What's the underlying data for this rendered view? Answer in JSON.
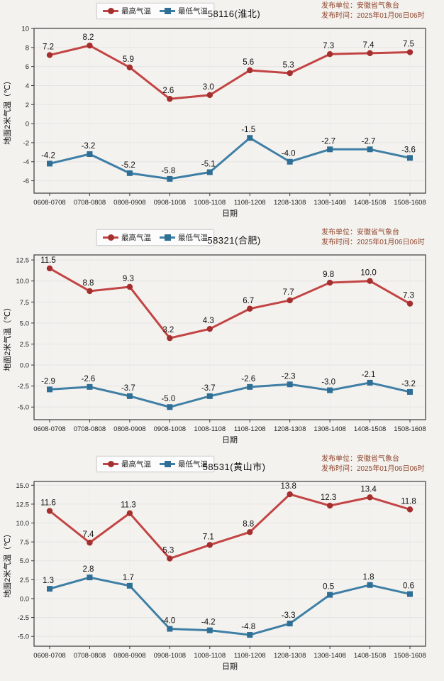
{
  "publisher": {
    "unit_line": "发布单位：安徽省气象台",
    "time_line": "发布时间：2025年01月06日06时"
  },
  "legend": {
    "max_label": "最高气温",
    "min_label": "最低气温"
  },
  "axes": {
    "xlabel": "日期",
    "ylabel": "地面2米气温（℃）"
  },
  "colors": {
    "max_line": "#c24444",
    "max_marker": "#a52f2f",
    "min_line": "#3f7fa6",
    "min_marker": "#2f6f96",
    "publisher_text": "#8f4730",
    "grid_h": "#e4e4e4",
    "grid_v": "#ececec",
    "frame": "#3a3a3a"
  },
  "chart_data": [
    {
      "type": "line",
      "station": "58116(淮北)",
      "title": "58116(淮北)",
      "xlabel": "日期",
      "ylabel": "地面2米气温（℃）",
      "categories": [
        "0608-0708",
        "0708-0808",
        "0808-0908",
        "0908-1008",
        "1008-1108",
        "1108-1208",
        "1208-1308",
        "1308-1408",
        "1408-1508",
        "1508-1608"
      ],
      "series": [
        {
          "name": "最高气温",
          "values": [
            7.2,
            8.2,
            5.9,
            2.6,
            3.0,
            5.6,
            5.3,
            7.3,
            7.4,
            7.5
          ]
        },
        {
          "name": "最低气温",
          "values": [
            -4.2,
            -3.2,
            -5.2,
            -5.8,
            -5.1,
            -1.5,
            -4.0,
            -2.7,
            -2.7,
            -3.6
          ]
        }
      ],
      "yticks": [
        10,
        8,
        6,
        4,
        2,
        0,
        -2,
        -4,
        -6
      ],
      "ytick_decimals": 0,
      "ylim": [
        -7.3,
        10.0
      ],
      "grid": true,
      "legend_position": "top-left"
    },
    {
      "type": "line",
      "station": "58321(合肥)",
      "title": "58321(合肥)",
      "xlabel": "日期",
      "ylabel": "地面2米气温（℃）",
      "categories": [
        "0608-0708",
        "0708-0808",
        "0808-0908",
        "0908-1008",
        "1008-1108",
        "1108-1208",
        "1208-1308",
        "1308-1408",
        "1408-1508",
        "1508-1608"
      ],
      "series": [
        {
          "name": "最高气温",
          "values": [
            11.5,
            8.8,
            9.3,
            3.2,
            4.3,
            6.7,
            7.7,
            9.8,
            10.0,
            7.3
          ]
        },
        {
          "name": "最低气温",
          "values": [
            -2.9,
            -2.6,
            -3.7,
            -5.0,
            -3.7,
            -2.6,
            -2.3,
            -3.0,
            -2.1,
            -3.2
          ]
        }
      ],
      "yticks": [
        12.5,
        10.0,
        7.5,
        5.0,
        2.5,
        0.0,
        -2.5,
        -5.0
      ],
      "ytick_decimals": 1,
      "ylim": [
        -6.5,
        13.1
      ],
      "grid": true,
      "legend_position": "top-left"
    },
    {
      "type": "line",
      "station": "58531(黄山市)",
      "title": "58531(黄山市)",
      "xlabel": "日期",
      "ylabel": "地面2米气温（℃）",
      "categories": [
        "0608-0708",
        "0708-0808",
        "0808-0908",
        "0908-1008",
        "1008-1108",
        "1108-1208",
        "1208-1308",
        "1308-1408",
        "1408-1508",
        "1508-1608"
      ],
      "series": [
        {
          "name": "最高气温",
          "values": [
            11.6,
            7.4,
            11.3,
            5.3,
            7.1,
            8.8,
            13.8,
            12.3,
            13.4,
            11.8
          ]
        },
        {
          "name": "最低气温",
          "values": [
            1.3,
            2.8,
            1.7,
            -4.0,
            -4.2,
            -4.8,
            -3.3,
            0.5,
            1.8,
            0.6
          ]
        }
      ],
      "yticks": [
        15.0,
        12.5,
        10.0,
        7.5,
        5.0,
        2.5,
        0.0,
        -2.5,
        -5.0
      ],
      "ytick_decimals": 1,
      "ylim": [
        -6.3,
        15.5
      ],
      "grid": true,
      "legend_position": "top-left"
    }
  ]
}
